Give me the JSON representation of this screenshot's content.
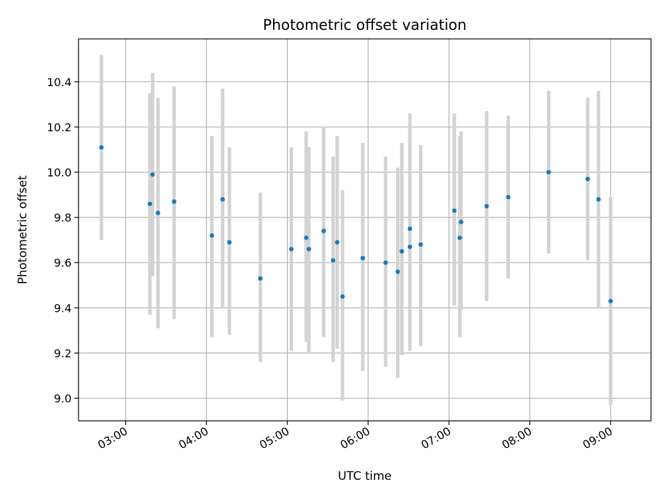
{
  "chart_data": {
    "type": "scatter",
    "title": "Photometric offset variation",
    "xlabel": "UTC time",
    "ylabel": "Photometric offset",
    "xlim": [
      "02:25",
      "09:30"
    ],
    "ylim": [
      8.9,
      10.59
    ],
    "x_ticks": [
      "03:00",
      "04:00",
      "05:00",
      "06:00",
      "07:00",
      "08:00",
      "09:00"
    ],
    "y_ticks": [
      9.0,
      9.2,
      9.4,
      9.6,
      9.8,
      10.0,
      10.2,
      10.4
    ],
    "grid": true,
    "points": [
      {
        "x": "02:42",
        "y": 10.11,
        "ylo": 9.7,
        "yhi": 10.52
      },
      {
        "x": "03:18",
        "y": 9.86,
        "ylo": 9.37,
        "yhi": 10.35
      },
      {
        "x": "03:20",
        "y": 9.99,
        "ylo": 9.54,
        "yhi": 10.44
      },
      {
        "x": "03:24",
        "y": 9.82,
        "ylo": 9.31,
        "yhi": 10.33
      },
      {
        "x": "03:36",
        "y": 9.87,
        "ylo": 9.35,
        "yhi": 10.38
      },
      {
        "x": "04:04",
        "y": 9.72,
        "ylo": 9.27,
        "yhi": 10.16
      },
      {
        "x": "04:12",
        "y": 9.88,
        "ylo": 9.4,
        "yhi": 10.37
      },
      {
        "x": "04:17",
        "y": 9.69,
        "ylo": 9.28,
        "yhi": 10.11
      },
      {
        "x": "04:40",
        "y": 9.53,
        "ylo": 9.16,
        "yhi": 9.91
      },
      {
        "x": "05:03",
        "y": 9.66,
        "ylo": 9.21,
        "yhi": 10.11
      },
      {
        "x": "05:14",
        "y": 9.71,
        "ylo": 9.25,
        "yhi": 10.18
      },
      {
        "x": "05:16",
        "y": 9.66,
        "ylo": 9.2,
        "yhi": 10.11
      },
      {
        "x": "05:27",
        "y": 9.74,
        "ylo": 9.27,
        "yhi": 10.2
      },
      {
        "x": "05:34",
        "y": 9.61,
        "ylo": 9.16,
        "yhi": 10.07
      },
      {
        "x": "05:37",
        "y": 9.69,
        "ylo": 9.22,
        "yhi": 10.16
      },
      {
        "x": "05:41",
        "y": 9.45,
        "ylo": 8.99,
        "yhi": 9.92
      },
      {
        "x": "05:56",
        "y": 9.62,
        "ylo": 9.12,
        "yhi": 10.13
      },
      {
        "x": "06:13",
        "y": 9.6,
        "ylo": 9.14,
        "yhi": 10.07
      },
      {
        "x": "06:22",
        "y": 9.56,
        "ylo": 9.09,
        "yhi": 10.02
      },
      {
        "x": "06:25",
        "y": 9.65,
        "ylo": 9.19,
        "yhi": 10.13
      },
      {
        "x": "06:31",
        "y": 9.75,
        "ylo": 9.22,
        "yhi": 10.26
      },
      {
        "x": "06:31",
        "y": 9.67,
        "ylo": 9.21,
        "yhi": 10.13
      },
      {
        "x": "06:39",
        "y": 9.68,
        "ylo": 9.23,
        "yhi": 10.12
      },
      {
        "x": "07:04",
        "y": 9.83,
        "ylo": 9.41,
        "yhi": 10.26
      },
      {
        "x": "07:08",
        "y": 9.71,
        "ylo": 9.27,
        "yhi": 10.16
      },
      {
        "x": "07:09",
        "y": 9.78,
        "ylo": 9.39,
        "yhi": 10.18
      },
      {
        "x": "07:28",
        "y": 9.85,
        "ylo": 9.43,
        "yhi": 10.27
      },
      {
        "x": "07:44",
        "y": 9.89,
        "ylo": 9.53,
        "yhi": 10.25
      },
      {
        "x": "08:14",
        "y": 10.0,
        "ylo": 9.64,
        "yhi": 10.36
      },
      {
        "x": "08:43",
        "y": 9.97,
        "ylo": 9.61,
        "yhi": 10.33
      },
      {
        "x": "08:51",
        "y": 9.88,
        "ylo": 9.4,
        "yhi": 10.36
      },
      {
        "x": "09:00",
        "y": 9.43,
        "ylo": 8.97,
        "yhi": 9.89
      }
    ],
    "colors": {
      "point": "#1f77b4",
      "errorbar": "#d3d3d3",
      "grid": "#b0b0b0"
    }
  }
}
